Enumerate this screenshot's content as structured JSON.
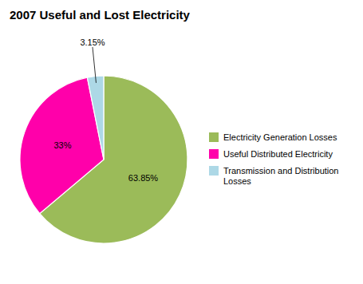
{
  "chart_data": {
    "type": "pie",
    "title": "2007 Useful and Lost Electricity",
    "categories": [
      "Electricity Generation Losses",
      "Useful Distributed Electricity",
      "Transmission and Distribution\nLosses"
    ],
    "values": [
      63.85,
      33,
      3.15
    ],
    "value_labels": [
      "63.85%",
      "33%",
      "3.15%"
    ],
    "colors": [
      "#9BBB59",
      "#FF00AA",
      "#ADD8E6"
    ],
    "data_labels": true,
    "legend": "right"
  }
}
